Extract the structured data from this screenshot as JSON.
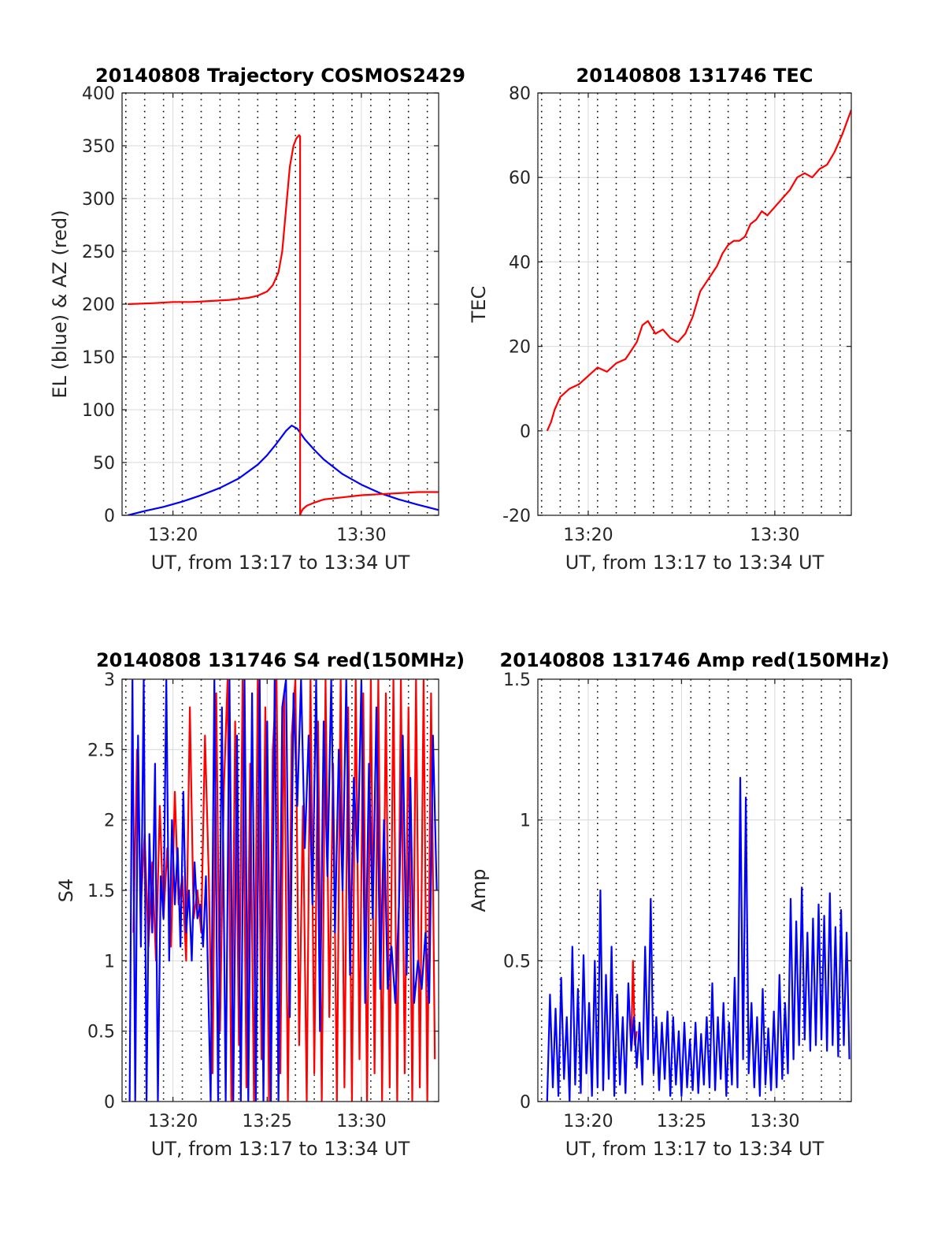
{
  "colors": {
    "red": "#ff0000",
    "blue": "#0000ff",
    "axis": "#262626",
    "grid_major": "#d9d9d9",
    "grid_minor": "#000000"
  },
  "chart_data": [
    {
      "id": "trajectory",
      "type": "line",
      "title": "20140808 Trajectory COSMOS2429",
      "xlabel": "UT, from 13:17 to 13:34 UT",
      "ylabel": "EL (blue) & AZ (red)",
      "xlim_min": [
        17.3,
        34.1
      ],
      "ylim": [
        0,
        400
      ],
      "xticks": [
        20,
        30
      ],
      "xtick_labels": [
        "13:20",
        "13:30"
      ],
      "yticks": [
        0,
        50,
        100,
        150,
        200,
        250,
        300,
        350,
        400
      ],
      "ytick_labels": [
        "0",
        "50",
        "100",
        "150",
        "200",
        "250",
        "300",
        "350",
        "400"
      ],
      "minor_x": [
        17.5,
        18.5,
        19.5,
        20.5,
        21.5,
        22.5,
        23.5,
        24.5,
        25.5,
        26.5,
        27.5,
        28.5,
        29.5,
        30.5,
        31.5,
        32.5,
        33.5
      ],
      "grid": true,
      "series": [
        {
          "color": "blue",
          "x": [
            17.6,
            18.5,
            19.5,
            20.5,
            21.5,
            22.5,
            23.5,
            24.5,
            25.0,
            25.5,
            26.0,
            26.3,
            26.6,
            27.0,
            27.5,
            28.0,
            29.0,
            30.0,
            31.0,
            32.0,
            33.0,
            34.1
          ],
          "y": [
            0,
            4,
            8,
            13,
            19,
            26,
            35,
            48,
            57,
            68,
            80,
            85,
            82,
            72,
            62,
            53,
            39,
            29,
            21,
            15,
            10,
            5
          ]
        },
        {
          "color": "red",
          "x": [
            17.6,
            19.0,
            20.0,
            21.0,
            22.0,
            23.0,
            24.0,
            24.5,
            25.0,
            25.3,
            25.6,
            25.8,
            26.0,
            26.2,
            26.4,
            26.55,
            26.7,
            26.75,
            26.75,
            26.8,
            26.9,
            27.1,
            27.5,
            28.0,
            29.0,
            30.0,
            31.0,
            32.0,
            33.0,
            34.1
          ],
          "y": [
            200,
            201,
            202,
            202,
            203,
            204,
            206,
            208,
            212,
            218,
            230,
            250,
            290,
            330,
            350,
            357,
            360,
            359,
            0,
            3,
            6,
            9,
            12,
            15,
            17,
            19,
            20,
            21,
            22,
            22
          ]
        }
      ]
    },
    {
      "id": "tec",
      "type": "line",
      "title": "20140808 131746 TEC",
      "xlabel": "UT, from 13:17 to 13:34 UT",
      "ylabel": "TEC",
      "xlim_min": [
        17.3,
        34.1
      ],
      "ylim": [
        -20,
        80
      ],
      "xticks": [
        20,
        30
      ],
      "xtick_labels": [
        "13:20",
        "13:30"
      ],
      "yticks": [
        -20,
        0,
        20,
        40,
        60,
        80
      ],
      "ytick_labels": [
        "-20",
        "0",
        "20",
        "40",
        "60",
        "80"
      ],
      "minor_x": [
        17.5,
        18.5,
        19.5,
        20.5,
        21.5,
        22.5,
        23.5,
        24.5,
        25.5,
        26.5,
        27.5,
        28.5,
        29.5,
        30.5,
        31.5,
        32.5,
        33.5
      ],
      "grid": true,
      "series": [
        {
          "color": "red",
          "x": [
            17.8,
            18.0,
            18.2,
            18.5,
            19.0,
            19.5,
            20.0,
            20.5,
            21.0,
            21.5,
            22.0,
            22.3,
            22.6,
            22.9,
            23.2,
            23.6,
            24.0,
            24.4,
            24.8,
            25.2,
            25.6,
            26.0,
            26.3,
            26.6,
            26.9,
            27.2,
            27.5,
            27.8,
            28.1,
            28.4,
            28.7,
            29.0,
            29.3,
            29.6,
            30.0,
            30.4,
            30.8,
            31.2,
            31.6,
            32.0,
            32.4,
            32.8,
            33.2,
            33.6,
            34.1
          ],
          "y": [
            0,
            2,
            5,
            8,
            10,
            11,
            13,
            15,
            14,
            16,
            17,
            19,
            21,
            25,
            26,
            23,
            24,
            22,
            21,
            23,
            27,
            33,
            35,
            37,
            39,
            42,
            44,
            45,
            45,
            46,
            49,
            50,
            52,
            51,
            53,
            55,
            57,
            60,
            61,
            60,
            62,
            63,
            66,
            70,
            76
          ]
        }
      ]
    },
    {
      "id": "s4",
      "type": "line",
      "title": "20140808 131746 S4 red(150MHz)",
      "xlabel": "UT, from 13:17 to 13:34 UT",
      "ylabel": "S4",
      "xlim_min": [
        17.3,
        34.1
      ],
      "ylim": [
        0,
        3
      ],
      "xticks": [
        20,
        25,
        30
      ],
      "xtick_labels": [
        "13:20",
        "13:25",
        "13:30"
      ],
      "yticks": [
        0,
        0.5,
        1,
        1.5,
        2,
        2.5,
        3
      ],
      "ytick_labels": [
        "0",
        "0.5",
        "1",
        "1.5",
        "2",
        "2.5",
        "3"
      ],
      "minor_x": [
        17.5,
        18.5,
        19.5,
        20.5,
        21.5,
        22.5,
        23.5,
        24.5,
        25.5,
        26.5,
        27.5,
        28.5,
        29.5,
        30.5,
        31.5,
        32.5,
        33.5
      ],
      "grid": true,
      "series": [
        {
          "color": "red",
          "x": [
            17.9,
            18.1,
            18.3,
            18.5,
            18.7,
            18.9,
            19.1,
            19.3,
            19.5,
            19.7,
            19.9,
            20.1,
            20.3,
            20.5,
            20.7,
            20.9,
            21.1,
            21.3,
            21.5,
            21.7,
            21.9,
            22.1,
            22.3,
            22.5,
            22.7,
            22.9,
            23.1,
            23.3,
            23.5,
            23.7,
            23.9,
            24.1,
            24.3,
            24.5,
            24.7,
            24.9,
            25.1,
            25.3,
            25.5,
            25.7,
            25.9,
            26.1,
            26.3,
            26.5,
            26.7,
            26.9,
            27.1,
            27.3,
            27.5,
            27.7,
            27.9,
            28.1,
            28.3,
            28.5,
            28.7,
            28.9,
            29.1,
            29.3,
            29.5,
            29.7,
            29.9,
            30.1,
            30.3,
            30.5,
            30.7,
            30.9,
            31.1,
            31.3,
            31.5,
            31.7,
            31.9,
            32.1,
            32.3,
            32.5,
            32.7,
            32.9,
            33.1,
            33.3,
            33.5,
            33.7,
            33.9
          ],
          "y": [
            1.2,
            2.5,
            1.4,
            1.9,
            1.1,
            1.7,
            1.0,
            2.1,
            1.3,
            1.8,
            1.1,
            2.2,
            1.4,
            1.6,
            1.0,
            2.8,
            1.3,
            1.5,
            1.2,
            2.6,
            1.6,
            0.2,
            2.9,
            0.5,
            2.2,
            3.0,
            0.0,
            2.7,
            0.4,
            3.0,
            0.1,
            2.4,
            0.0,
            3.0,
            0.3,
            2.8,
            0.0,
            2.5,
            3.0,
            0.2,
            2.9,
            0.0,
            2.6,
            3.0,
            0.4,
            2.1,
            0.0,
            3.0,
            0.2,
            2.7,
            0.0,
            3.0,
            0.6,
            2.4,
            0.0,
            3.0,
            0.1,
            2.8,
            0.0,
            3.0,
            0.3,
            2.9,
            0.0,
            3.0,
            0.2,
            3.0,
            0.0,
            2.9,
            0.1,
            3.0,
            0.0,
            3.0,
            0.2,
            2.8,
            0.0,
            3.0,
            0.1,
            3.0,
            0.0,
            2.9,
            0.3
          ]
        },
        {
          "color": "blue",
          "x": [
            17.7,
            17.85,
            18.0,
            18.15,
            18.3,
            18.45,
            18.6,
            18.75,
            18.9,
            19.05,
            19.2,
            19.35,
            19.5,
            19.65,
            19.8,
            19.95,
            20.1,
            20.25,
            20.4,
            20.55,
            20.7,
            20.85,
            21.0,
            21.15,
            21.3,
            21.45,
            21.6,
            21.75,
            22.0,
            22.2,
            22.4,
            22.6,
            22.8,
            23.0,
            23.2,
            23.4,
            23.6,
            23.8,
            24.0,
            24.2,
            24.4,
            24.6,
            24.8,
            25.0,
            25.2,
            25.4,
            25.6,
            25.8,
            26.0,
            26.2,
            26.4,
            26.6,
            26.8,
            27.0,
            27.2,
            27.4,
            27.6,
            27.8,
            28.0,
            28.2,
            28.4,
            28.6,
            28.8,
            29.0,
            29.2,
            29.4,
            29.6,
            29.8,
            30.0,
            30.2,
            30.4,
            30.6,
            30.8,
            31.0,
            31.2,
            31.4,
            31.6,
            31.8,
            32.0,
            32.2,
            32.4,
            32.6,
            32.8,
            33.0,
            33.2,
            33.4,
            33.6,
            33.8,
            34.0
          ],
          "y": [
            0.0,
            3.0,
            0.0,
            2.6,
            1.1,
            3.0,
            0.0,
            1.9,
            1.2,
            2.4,
            0.0,
            1.6,
            1.3,
            3.0,
            1.0,
            2.0,
            1.4,
            1.8,
            1.1,
            2.2,
            1.2,
            1.5,
            1.0,
            1.7,
            1.3,
            1.4,
            1.1,
            1.6,
            0.0,
            3.0,
            0.0,
            2.8,
            0.0,
            3.0,
            0.0,
            2.6,
            0.0,
            3.0,
            0.0,
            2.9,
            0.0,
            3.0,
            0.0,
            2.7,
            0.0,
            3.0,
            0.0,
            2.8,
            3.0,
            0.6,
            2.9,
            2.1,
            3.0,
            1.8,
            2.6,
            1.4,
            3.0,
            0.5,
            2.7,
            1.6,
            3.0,
            1.2,
            2.5,
            1.5,
            3.0,
            0.9,
            2.3,
            1.7,
            3.0,
            0.7,
            2.4,
            1.3,
            2.8,
            0.8,
            2.0,
            0.8,
            1.1,
            0.7,
            1.4,
            2.6,
            0.9,
            2.3,
            0.7,
            1.0,
            0.8,
            1.2,
            0.7,
            2.6,
            1.5
          ]
        }
      ]
    },
    {
      "id": "amp",
      "type": "line",
      "title": "20140808 131746 Amp red(150MHz)",
      "xlabel": "UT, from 13:17 to 13:34 UT",
      "ylabel": "Amp",
      "xlim_min": [
        17.3,
        34.1
      ],
      "ylim": [
        0,
        1.5
      ],
      "xticks": [
        20,
        25,
        30
      ],
      "xtick_labels": [
        "13:20",
        "13:25",
        "13:30"
      ],
      "yticks": [
        0,
        0.5,
        1,
        1.5
      ],
      "ytick_labels": [
        "0",
        "0.5",
        "1",
        "1.5"
      ],
      "minor_x": [
        17.5,
        18.5,
        19.5,
        20.5,
        21.5,
        22.5,
        23.5,
        24.5,
        25.5,
        26.5,
        27.5,
        28.5,
        29.5,
        30.5,
        31.5,
        32.5,
        33.5
      ],
      "grid": true,
      "series": [
        {
          "color": "red",
          "x": [
            22.3,
            22.4,
            22.5,
            22.6
          ],
          "y": [
            0.2,
            0.5,
            0.2,
            0.25
          ]
        },
        {
          "color": "blue",
          "x": [
            17.8,
            17.95,
            18.1,
            18.25,
            18.4,
            18.55,
            18.7,
            18.85,
            19.0,
            19.15,
            19.3,
            19.45,
            19.6,
            19.75,
            19.9,
            20.05,
            20.2,
            20.35,
            20.5,
            20.65,
            20.8,
            20.95,
            21.1,
            21.25,
            21.4,
            21.55,
            21.7,
            21.85,
            22.0,
            22.15,
            22.3,
            22.45,
            22.6,
            22.75,
            22.9,
            23.05,
            23.2,
            23.35,
            23.5,
            23.65,
            23.8,
            23.95,
            24.1,
            24.25,
            24.4,
            24.55,
            24.7,
            24.85,
            25.0,
            25.15,
            25.3,
            25.45,
            25.6,
            25.75,
            25.9,
            26.05,
            26.2,
            26.35,
            26.5,
            26.65,
            26.8,
            26.95,
            27.1,
            27.25,
            27.4,
            27.55,
            27.7,
            27.85,
            28.0,
            28.15,
            28.3,
            28.45,
            28.6,
            28.75,
            28.9,
            29.05,
            29.2,
            29.35,
            29.5,
            29.65,
            29.8,
            29.95,
            30.1,
            30.25,
            30.4,
            30.55,
            30.7,
            30.85,
            31.0,
            31.15,
            31.3,
            31.45,
            31.6,
            31.75,
            31.9,
            32.05,
            32.2,
            32.35,
            32.5,
            32.65,
            32.8,
            32.95,
            33.1,
            33.25,
            33.4,
            33.55,
            33.7,
            33.85,
            34.0
          ],
          "y": [
            0.0,
            0.38,
            0.05,
            0.33,
            0.02,
            0.44,
            0.08,
            0.3,
            0.0,
            0.55,
            0.06,
            0.4,
            0.03,
            0.52,
            0.1,
            0.35,
            0.02,
            0.5,
            0.05,
            0.75,
            0.04,
            0.45,
            0.08,
            0.55,
            0.02,
            0.38,
            0.06,
            0.3,
            0.03,
            0.42,
            0.18,
            0.3,
            0.12,
            0.28,
            0.06,
            0.55,
            0.15,
            0.72,
            0.1,
            0.3,
            0.04,
            0.28,
            0.08,
            0.32,
            0.02,
            0.3,
            0.06,
            0.25,
            0.02,
            0.28,
            0.05,
            0.22,
            0.04,
            0.28,
            0.03,
            0.24,
            0.06,
            0.3,
            0.05,
            0.42,
            0.04,
            0.3,
            0.08,
            0.35,
            0.02,
            0.28,
            0.06,
            0.44,
            0.05,
            1.15,
            0.15,
            1.08,
            0.1,
            0.35,
            0.05,
            0.3,
            0.02,
            0.4,
            0.06,
            0.26,
            0.04,
            0.32,
            0.05,
            0.45,
            0.08,
            0.35,
            0.1,
            0.72,
            0.15,
            0.64,
            0.2,
            0.76,
            0.22,
            0.6,
            0.18,
            0.65,
            0.2,
            0.7,
            0.22,
            0.66,
            0.18,
            0.74,
            0.2,
            0.62,
            0.16,
            0.68,
            0.2,
            0.6,
            0.15
          ]
        }
      ]
    }
  ]
}
